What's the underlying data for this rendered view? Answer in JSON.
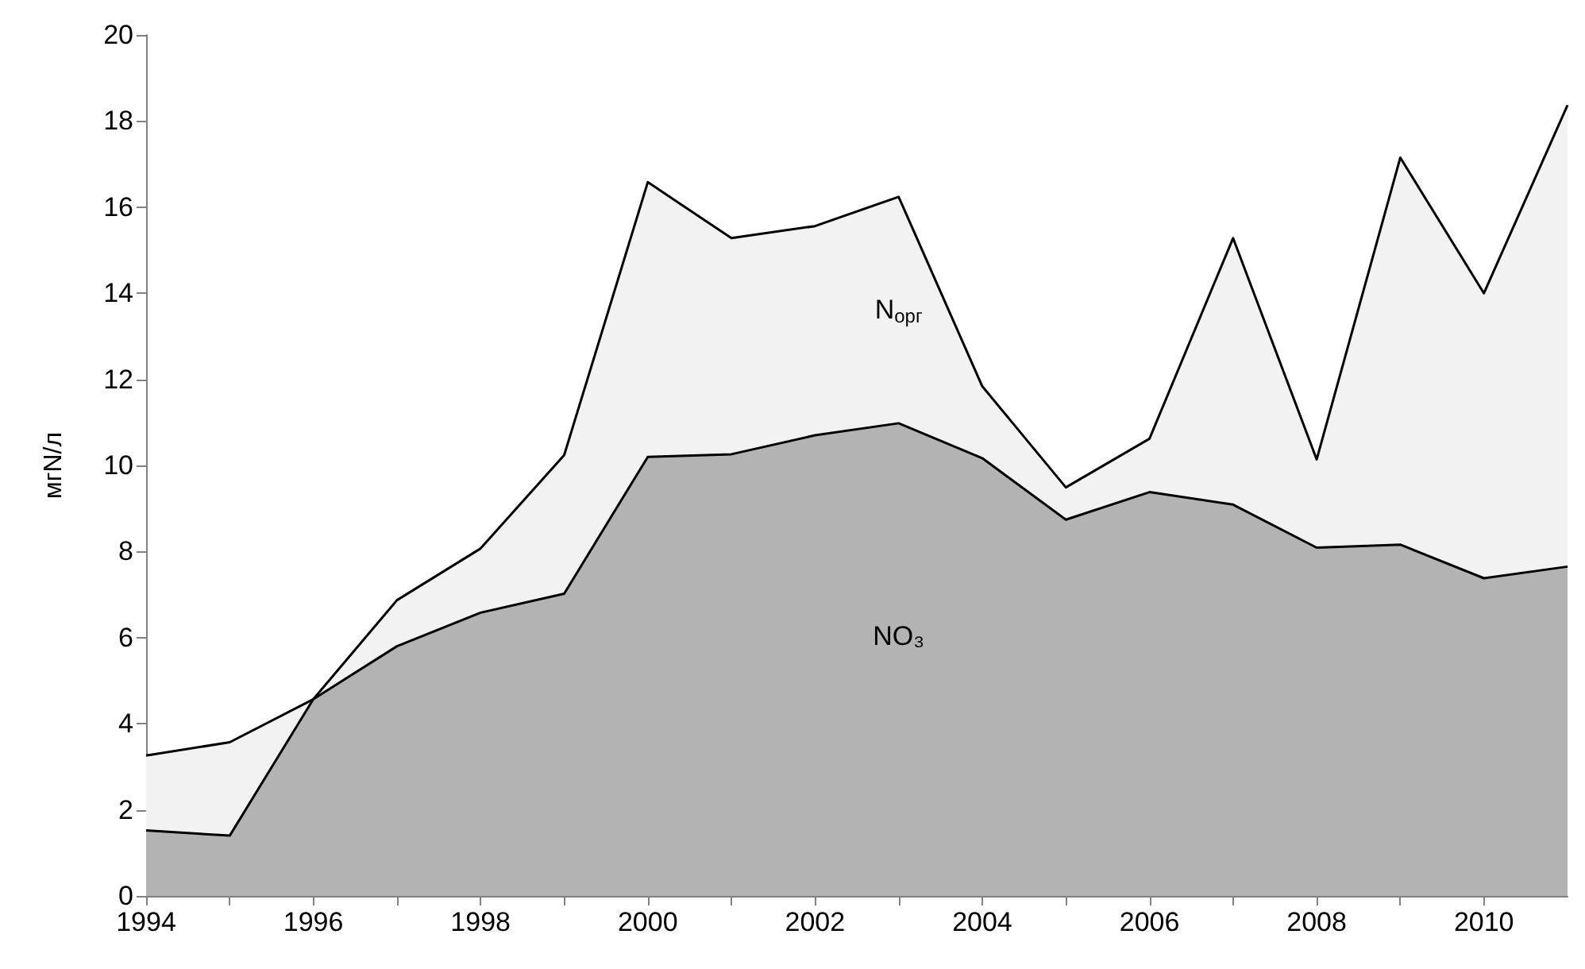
{
  "chart_data": {
    "type": "area",
    "stacked": true,
    "ylabel": "мгN/л",
    "x": [
      1994,
      1995,
      1996,
      1997,
      1998,
      1999,
      2000,
      2001,
      2002,
      2003,
      2004,
      2005,
      2006,
      2007,
      2008,
      2009,
      2010,
      2011
    ],
    "series": [
      {
        "name": "NO₃",
        "color": "#b3b3b3",
        "values": [
          1.52,
          1.4,
          4.57,
          5.8,
          6.58,
          7.02,
          10.2,
          10.26,
          10.7,
          10.98,
          10.17,
          8.74,
          9.38,
          9.09,
          8.09,
          8.16,
          7.38,
          7.65
        ]
      },
      {
        "name": "N$_{орг}$",
        "color": "#f2f2f2",
        "values": [
          1.74,
          2.17,
          0,
          1.07,
          1.49,
          3.22,
          6.38,
          5.02,
          4.86,
          5.26,
          1.67,
          0.75,
          1.24,
          6.19,
          2.05,
          8.99,
          6.62,
          10.72
        ]
      }
    ],
    "xlim": [
      1994,
      2011
    ],
    "xticks": [
      1994,
      {
        "value": 1995,
        "label": null
      },
      1996,
      {
        "value": 1997,
        "label": null
      },
      1998,
      {
        "value": 1999,
        "label": null
      },
      2000,
      {
        "value": 2001,
        "label": null
      },
      2002,
      {
        "value": 2003,
        "label": null
      },
      2004,
      {
        "value": 2005,
        "label": null
      },
      2006,
      {
        "value": 2007,
        "label": null
      },
      2008,
      {
        "value": 2009,
        "label": null
      },
      2010
    ],
    "ylim": [
      0,
      20
    ],
    "yticks": [
      0,
      2,
      4,
      6,
      8,
      10,
      12,
      14,
      16,
      18,
      20
    ],
    "grid": false,
    "marker": "none",
    "line_style": "solid"
  }
}
